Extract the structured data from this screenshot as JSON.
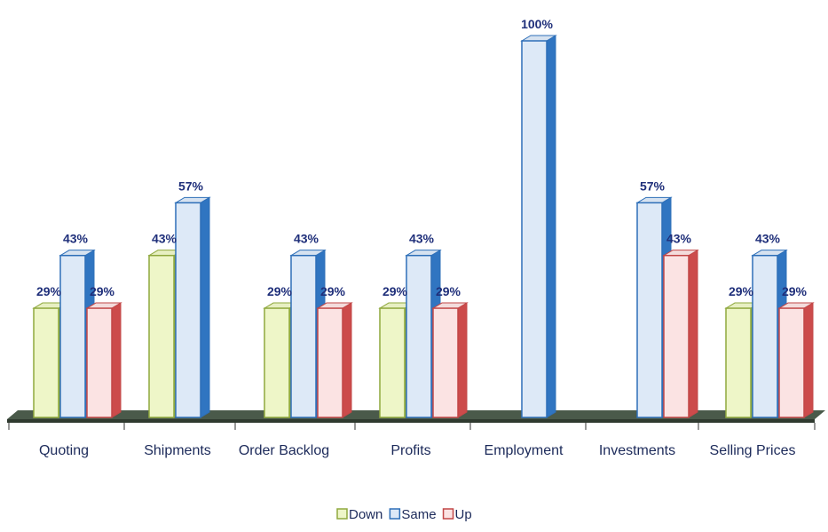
{
  "chart_data": {
    "type": "bar",
    "style": "3d-clustered-column",
    "categories": [
      "Quoting",
      "Shipments",
      "Order Backlog",
      "Profits",
      "Employment",
      "Investments",
      "Selling Prices"
    ],
    "series": [
      {
        "name": "Down",
        "color": "#eef6c8",
        "edge": "#8fa83e",
        "values": [
          29,
          43,
          29,
          29,
          0,
          0,
          29
        ],
        "labels": [
          "29%",
          "43%",
          "29%",
          "29%",
          "",
          "",
          "29%"
        ]
      },
      {
        "name": "Same",
        "color": "#dde9f7",
        "edge": "#2e6fb8",
        "values": [
          43,
          57,
          43,
          43,
          100,
          57,
          43
        ],
        "labels": [
          "43%",
          "57%",
          "43%",
          "43%",
          "100%",
          "57%",
          "43%"
        ]
      },
      {
        "name": "Up",
        "color": "#fbe3e3",
        "edge": "#c24747",
        "values": [
          29,
          0,
          29,
          29,
          0,
          43,
          29
        ],
        "labels": [
          "29%",
          "",
          "29%",
          "29%",
          "",
          "43%",
          "29%"
        ]
      }
    ],
    "ylim": [
      0,
      100
    ],
    "grid": false,
    "legend_position": "bottom-center",
    "floor_color": "#4a5a4a"
  }
}
